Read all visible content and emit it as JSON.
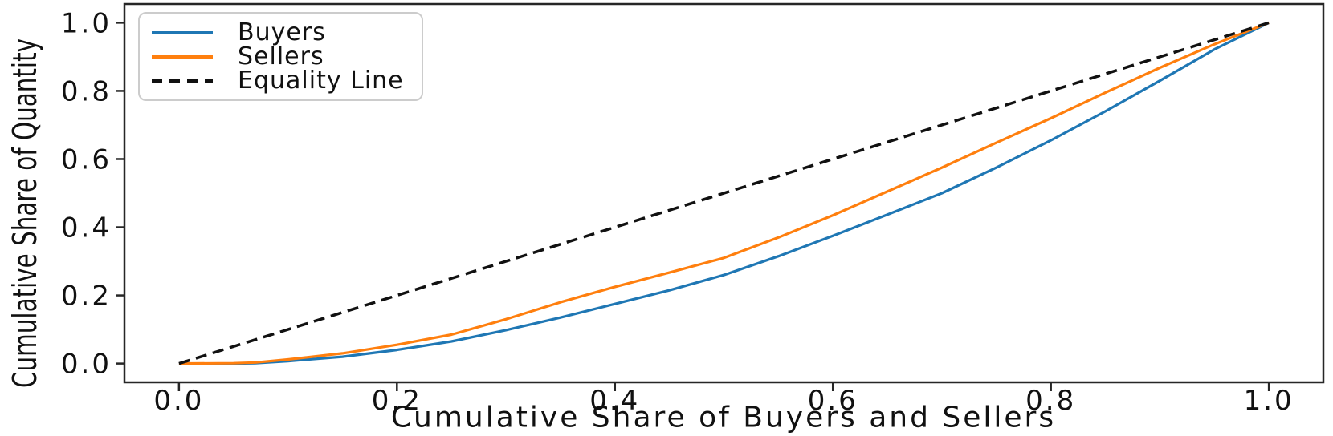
{
  "chart_data": {
    "type": "line",
    "title": "",
    "xlabel": "Cumulative Share of Buyers and Sellers",
    "ylabel": "Cumulative Share of Quantity",
    "xlim": [
      -0.05,
      1.05
    ],
    "ylim": [
      -0.055,
      1.055
    ],
    "xticks": [
      0.0,
      0.2,
      0.4,
      0.6,
      0.8,
      1.0
    ],
    "xtick_labels": [
      "0.0",
      "0.2",
      "0.4",
      "0.6",
      "0.8",
      "1.0"
    ],
    "yticks": [
      0.0,
      0.2,
      0.4,
      0.6,
      0.8,
      1.0
    ],
    "ytick_labels": [
      "0.0",
      "0.2",
      "0.4",
      "0.6",
      "0.8",
      "1.0"
    ],
    "grid": false,
    "axis_color": "#262626",
    "text_color": "#111111",
    "legend": {
      "position": "upper-left",
      "border_color": "#cccccc",
      "background": "#ffffff",
      "entries": [
        "Buyers",
        "Sellers",
        "Equality Line"
      ]
    },
    "x": [
      0,
      0.05,
      0.07,
      0.1,
      0.15,
      0.2,
      0.25,
      0.3,
      0.35,
      0.4,
      0.45,
      0.5,
      0.55,
      0.6,
      0.65,
      0.7,
      0.75,
      0.8,
      0.85,
      0.9,
      0.95,
      1.0
    ],
    "series": [
      {
        "name": "Buyers",
        "color": "#1f77b4",
        "line_style": "solid",
        "values": [
          0,
          0,
          0.001,
          0.007,
          0.02,
          0.04,
          0.065,
          0.098,
          0.135,
          0.175,
          0.215,
          0.26,
          0.315,
          0.375,
          0.437,
          0.5,
          0.575,
          0.655,
          0.74,
          0.83,
          0.922,
          1.0
        ]
      },
      {
        "name": "Sellers",
        "color": "#ff7f0e",
        "line_style": "solid",
        "values": [
          0,
          0.001,
          0.003,
          0.012,
          0.03,
          0.055,
          0.085,
          0.13,
          0.18,
          0.225,
          0.267,
          0.31,
          0.37,
          0.435,
          0.505,
          0.575,
          0.648,
          0.72,
          0.795,
          0.868,
          0.937,
          1.0
        ]
      },
      {
        "name": "Equality Line",
        "color": "#111111",
        "line_style": "dashed",
        "x": [
          0,
          1
        ],
        "values": [
          0,
          1
        ]
      }
    ]
  }
}
